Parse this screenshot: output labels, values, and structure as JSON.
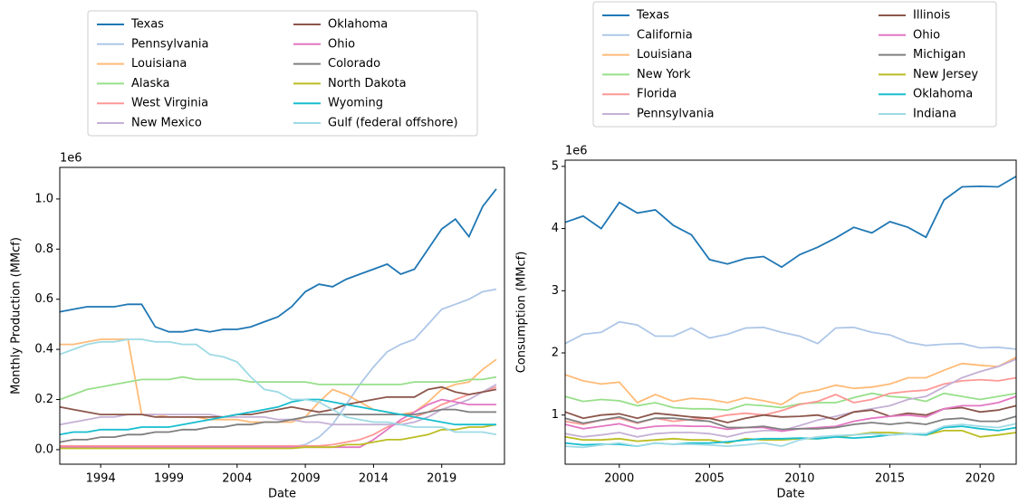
{
  "chart_data": [
    {
      "type": "line",
      "x_label": "Date",
      "y_label": "Monthly Production (MMcf)",
      "offset_label": "1e6",
      "x": [
        1991,
        1992,
        1993,
        1994,
        1995,
        1996,
        1997,
        1998,
        1999,
        2000,
        2001,
        2002,
        2003,
        2004,
        2005,
        2006,
        2007,
        2008,
        2009,
        2010,
        2011,
        2012,
        2013,
        2014,
        2015,
        2016,
        2017,
        2018,
        2019,
        2020,
        2021,
        2022,
        2023
      ],
      "xlim": [
        1991,
        2023.6
      ],
      "xticks": [
        1994,
        1999,
        2004,
        2009,
        2014,
        2019
      ],
      "ylim": [
        -0.058,
        1.126
      ],
      "yticks": [
        {
          "value": 0,
          "label": "0.0"
        },
        0.2,
        0.4,
        0.6,
        0.8,
        {
          "value": 1,
          "label": "1.0"
        }
      ],
      "legend": "upper-outside",
      "series": [
        {
          "name": "Texas",
          "color": "#1f77b4",
          "values": [
            0.55,
            0.56,
            0.57,
            0.57,
            0.57,
            0.58,
            0.58,
            0.49,
            0.47,
            0.47,
            0.48,
            0.47,
            0.48,
            0.48,
            0.49,
            0.51,
            0.53,
            0.57,
            0.63,
            0.66,
            0.65,
            0.68,
            0.7,
            0.72,
            0.74,
            0.7,
            0.72,
            0.8,
            0.88,
            0.92,
            0.85,
            0.97,
            1.04
          ]
        },
        {
          "name": "Pennsylvania",
          "color": "#aec7e8",
          "values": [
            0.01,
            0.01,
            0.01,
            0.01,
            0.01,
            0.01,
            0.01,
            0.01,
            0.01,
            0.01,
            0.01,
            0.01,
            0.01,
            0.01,
            0.01,
            0.01,
            0.01,
            0.01,
            0.02,
            0.05,
            0.1,
            0.18,
            0.26,
            0.33,
            0.39,
            0.42,
            0.44,
            0.5,
            0.56,
            0.58,
            0.6,
            0.63,
            0.64
          ]
        },
        {
          "name": "Louisiana",
          "color": "#ffbb78",
          "values": [
            0.42,
            0.42,
            0.43,
            0.44,
            0.44,
            0.44,
            0.14,
            0.14,
            0.13,
            0.13,
            0.13,
            0.12,
            0.12,
            0.12,
            0.11,
            0.11,
            0.11,
            0.11,
            0.13,
            0.19,
            0.24,
            0.22,
            0.19,
            0.16,
            0.15,
            0.14,
            0.15,
            0.19,
            0.24,
            0.26,
            0.27,
            0.32,
            0.36
          ]
        },
        {
          "name": "Alaska",
          "color": "#98df8a",
          "values": [
            0.2,
            0.22,
            0.24,
            0.25,
            0.26,
            0.27,
            0.28,
            0.28,
            0.28,
            0.29,
            0.28,
            0.28,
            0.28,
            0.28,
            0.27,
            0.27,
            0.27,
            0.27,
            0.27,
            0.26,
            0.26,
            0.26,
            0.26,
            0.26,
            0.26,
            0.26,
            0.27,
            0.27,
            0.27,
            0.27,
            0.28,
            0.28,
            0.29
          ]
        },
        {
          "name": "West Virginia",
          "color": "#ff9896",
          "values": [
            0.015,
            0.015,
            0.015,
            0.015,
            0.015,
            0.015,
            0.015,
            0.015,
            0.015,
            0.015,
            0.015,
            0.015,
            0.015,
            0.015,
            0.015,
            0.015,
            0.015,
            0.015,
            0.015,
            0.015,
            0.02,
            0.03,
            0.04,
            0.06,
            0.09,
            0.11,
            0.13,
            0.15,
            0.18,
            0.2,
            0.22,
            0.23,
            0.25
          ]
        },
        {
          "name": "New Mexico",
          "color": "#c5b0d5",
          "values": [
            0.1,
            0.11,
            0.12,
            0.13,
            0.13,
            0.14,
            0.14,
            0.14,
            0.14,
            0.14,
            0.14,
            0.14,
            0.13,
            0.13,
            0.13,
            0.13,
            0.12,
            0.12,
            0.11,
            0.11,
            0.1,
            0.1,
            0.1,
            0.1,
            0.1,
            0.1,
            0.11,
            0.13,
            0.16,
            0.18,
            0.2,
            0.23,
            0.26
          ]
        },
        {
          "name": "Oklahoma",
          "color": "#8c564b",
          "values": [
            0.17,
            0.16,
            0.15,
            0.14,
            0.14,
            0.14,
            0.14,
            0.13,
            0.13,
            0.13,
            0.13,
            0.13,
            0.13,
            0.14,
            0.14,
            0.15,
            0.16,
            0.17,
            0.16,
            0.15,
            0.16,
            0.18,
            0.19,
            0.2,
            0.21,
            0.21,
            0.21,
            0.24,
            0.25,
            0.23,
            0.22,
            0.23,
            0.24
          ]
        },
        {
          "name": "Ohio",
          "color": "#e377c2",
          "values": [
            0.01,
            0.01,
            0.01,
            0.01,
            0.01,
            0.01,
            0.01,
            0.01,
            0.01,
            0.01,
            0.01,
            0.01,
            0.01,
            0.01,
            0.01,
            0.01,
            0.01,
            0.01,
            0.01,
            0.01,
            0.01,
            0.01,
            0.01,
            0.04,
            0.08,
            0.12,
            0.15,
            0.18,
            0.2,
            0.19,
            0.18,
            0.18,
            0.18
          ]
        },
        {
          "name": "Colorado",
          "color": "#7f7f7f",
          "values": [
            0.03,
            0.04,
            0.04,
            0.05,
            0.05,
            0.06,
            0.06,
            0.07,
            0.07,
            0.08,
            0.08,
            0.09,
            0.09,
            0.1,
            0.1,
            0.11,
            0.11,
            0.12,
            0.13,
            0.14,
            0.14,
            0.14,
            0.14,
            0.14,
            0.14,
            0.14,
            0.14,
            0.15,
            0.16,
            0.16,
            0.15,
            0.15,
            0.15
          ]
        },
        {
          "name": "North Dakota",
          "color": "#bcbd22",
          "values": [
            0.005,
            0.005,
            0.005,
            0.005,
            0.005,
            0.005,
            0.005,
            0.005,
            0.005,
            0.005,
            0.005,
            0.005,
            0.005,
            0.005,
            0.005,
            0.005,
            0.005,
            0.005,
            0.01,
            0.01,
            0.01,
            0.02,
            0.02,
            0.03,
            0.04,
            0.04,
            0.05,
            0.06,
            0.08,
            0.08,
            0.09,
            0.09,
            0.1
          ]
        },
        {
          "name": "Wyoming",
          "color": "#17becf",
          "values": [
            0.06,
            0.07,
            0.07,
            0.08,
            0.08,
            0.08,
            0.09,
            0.09,
            0.09,
            0.1,
            0.11,
            0.12,
            0.13,
            0.14,
            0.15,
            0.16,
            0.17,
            0.19,
            0.2,
            0.2,
            0.19,
            0.18,
            0.17,
            0.16,
            0.15,
            0.14,
            0.13,
            0.12,
            0.11,
            0.1,
            0.1,
            0.1,
            0.1
          ]
        },
        {
          "name": "Gulf (federal offshore)",
          "color": "#9edae5",
          "values": [
            0.38,
            0.4,
            0.42,
            0.43,
            0.43,
            0.44,
            0.44,
            0.43,
            0.43,
            0.42,
            0.42,
            0.38,
            0.37,
            0.35,
            0.29,
            0.24,
            0.23,
            0.2,
            0.2,
            0.19,
            0.16,
            0.13,
            0.12,
            0.11,
            0.11,
            0.1,
            0.09,
            0.09,
            0.09,
            0.07,
            0.07,
            0.07,
            0.06
          ]
        }
      ]
    },
    {
      "type": "line",
      "x_label": "Date",
      "y_label": "Consumption (MMcf)",
      "offset_label": "1e6",
      "x": [
        1997,
        1998,
        1999,
        2000,
        2001,
        2002,
        2003,
        2004,
        2005,
        2006,
        2007,
        2008,
        2009,
        2010,
        2011,
        2012,
        2013,
        2014,
        2015,
        2016,
        2017,
        2018,
        2019,
        2020,
        2021,
        2022
      ],
      "xlim": [
        1997,
        2022
      ],
      "xticks": [
        2000,
        2005,
        2010,
        2015,
        2020
      ],
      "ylim": [
        0.21,
        5.1
      ],
      "yticks": [
        1,
        2,
        3,
        4,
        5
      ],
      "legend": "upper-outside",
      "series": [
        {
          "name": "Texas",
          "color": "#1f77b4",
          "values": [
            4.1,
            4.2,
            4.0,
            4.42,
            4.25,
            4.3,
            4.05,
            3.9,
            3.5,
            3.43,
            3.52,
            3.55,
            3.38,
            3.58,
            3.7,
            3.85,
            4.02,
            3.93,
            4.11,
            4.02,
            3.86,
            4.46,
            4.67,
            4.68,
            4.67,
            4.84
          ]
        },
        {
          "name": "California",
          "color": "#aec7e8",
          "values": [
            2.15,
            2.3,
            2.33,
            2.5,
            2.45,
            2.27,
            2.27,
            2.4,
            2.24,
            2.3,
            2.4,
            2.41,
            2.33,
            2.27,
            2.15,
            2.4,
            2.41,
            2.33,
            2.29,
            2.17,
            2.12,
            2.14,
            2.15,
            2.08,
            2.09,
            2.06
          ]
        },
        {
          "name": "Louisiana",
          "color": "#ffbb78",
          "values": [
            1.65,
            1.55,
            1.5,
            1.53,
            1.2,
            1.33,
            1.22,
            1.27,
            1.25,
            1.2,
            1.28,
            1.23,
            1.17,
            1.35,
            1.4,
            1.48,
            1.43,
            1.45,
            1.5,
            1.6,
            1.6,
            1.72,
            1.83,
            1.8,
            1.78,
            1.93
          ]
        },
        {
          "name": "New York",
          "color": "#98df8a",
          "values": [
            1.3,
            1.22,
            1.25,
            1.23,
            1.15,
            1.2,
            1.12,
            1.1,
            1.1,
            1.08,
            1.17,
            1.15,
            1.12,
            1.18,
            1.2,
            1.2,
            1.28,
            1.35,
            1.3,
            1.28,
            1.22,
            1.35,
            1.3,
            1.25,
            1.3,
            1.35
          ]
        },
        {
          "name": "Florida",
          "color": "#ff9896",
          "values": [
            0.9,
            0.85,
            0.92,
            0.95,
            0.87,
            0.95,
            0.9,
            0.93,
            0.95,
            1.0,
            1.03,
            1.0,
            1.07,
            1.17,
            1.22,
            1.33,
            1.2,
            1.25,
            1.35,
            1.38,
            1.4,
            1.5,
            1.55,
            1.57,
            1.55,
            1.6
          ]
        },
        {
          "name": "Pennsylvania",
          "color": "#c5b0d5",
          "values": [
            0.7,
            0.65,
            0.68,
            0.72,
            0.65,
            0.7,
            0.72,
            0.72,
            0.7,
            0.65,
            0.72,
            0.75,
            0.75,
            0.83,
            0.92,
            0.98,
            1.05,
            1.1,
            1.15,
            1.25,
            1.3,
            1.45,
            1.6,
            1.7,
            1.78,
            1.9
          ]
        },
        {
          "name": "Illinois",
          "color": "#8c564b",
          "values": [
            1.05,
            0.95,
            1.0,
            1.02,
            0.95,
            1.03,
            1.0,
            0.97,
            0.95,
            0.88,
            0.95,
            1.0,
            0.97,
            0.98,
            1.0,
            0.93,
            1.05,
            1.08,
            0.98,
            1.03,
            1.0,
            1.1,
            1.12,
            1.05,
            1.08,
            1.15
          ]
        },
        {
          "name": "Ohio",
          "color": "#e377c2",
          "values": [
            0.85,
            0.78,
            0.82,
            0.86,
            0.78,
            0.82,
            0.83,
            0.82,
            0.82,
            0.77,
            0.8,
            0.8,
            0.74,
            0.78,
            0.8,
            0.82,
            0.9,
            0.95,
            0.98,
            1.0,
            0.97,
            1.1,
            1.15,
            1.15,
            1.2,
            1.3
          ]
        },
        {
          "name": "Michigan",
          "color": "#7f7f7f",
          "values": [
            0.95,
            0.87,
            0.92,
            0.97,
            0.88,
            0.95,
            0.95,
            0.92,
            0.9,
            0.8,
            0.8,
            0.82,
            0.77,
            0.78,
            0.78,
            0.8,
            0.85,
            0.88,
            0.85,
            0.88,
            0.85,
            0.93,
            0.95,
            0.9,
            0.9,
            0.98
          ]
        },
        {
          "name": "New Jersey",
          "color": "#bcbd22",
          "values": [
            0.65,
            0.6,
            0.6,
            0.62,
            0.58,
            0.6,
            0.62,
            0.6,
            0.6,
            0.55,
            0.62,
            0.6,
            0.6,
            0.62,
            0.62,
            0.65,
            0.68,
            0.72,
            0.72,
            0.7,
            0.68,
            0.75,
            0.75,
            0.65,
            0.68,
            0.72
          ]
        },
        {
          "name": "Oklahoma",
          "color": "#17becf",
          "values": [
            0.55,
            0.52,
            0.53,
            0.53,
            0.5,
            0.55,
            0.53,
            0.55,
            0.55,
            0.57,
            0.6,
            0.62,
            0.62,
            0.63,
            0.62,
            0.65,
            0.63,
            0.65,
            0.68,
            0.7,
            0.68,
            0.8,
            0.82,
            0.78,
            0.75,
            0.8
          ]
        },
        {
          "name": "Indiana",
          "color": "#9edae5",
          "values": [
            0.5,
            0.48,
            0.52,
            0.55,
            0.5,
            0.55,
            0.53,
            0.53,
            0.52,
            0.5,
            0.52,
            0.55,
            0.5,
            0.6,
            0.65,
            0.67,
            0.68,
            0.7,
            0.68,
            0.7,
            0.7,
            0.82,
            0.85,
            0.82,
            0.8,
            0.86
          ]
        }
      ]
    }
  ]
}
